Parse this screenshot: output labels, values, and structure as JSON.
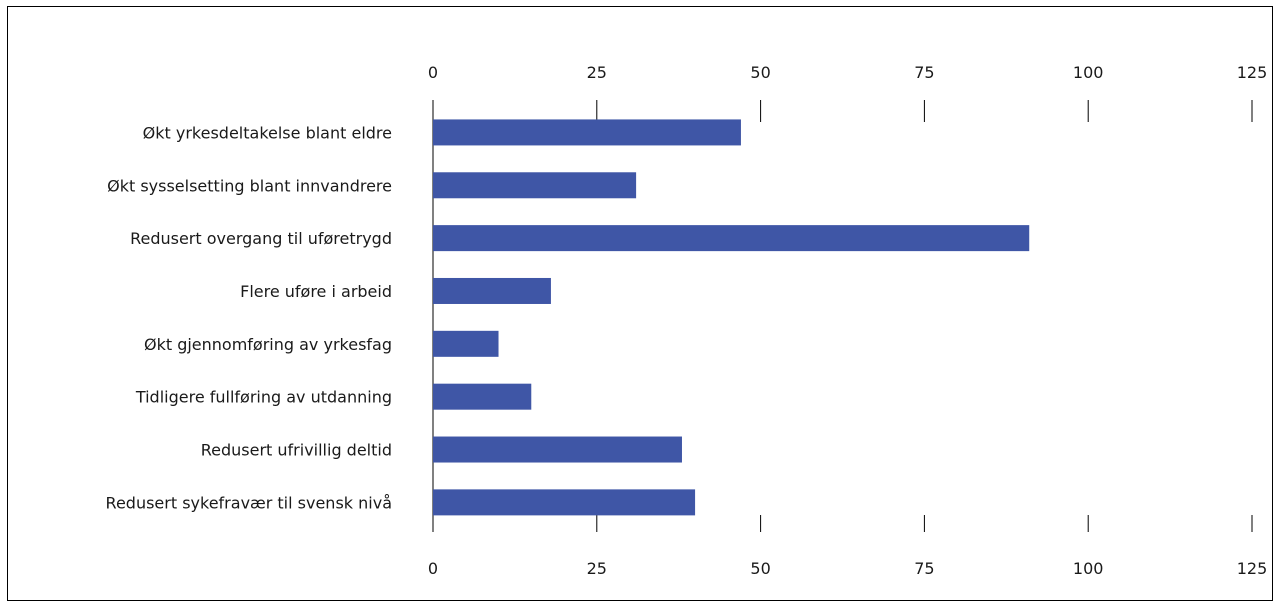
{
  "chart_data": {
    "type": "bar",
    "orientation": "horizontal",
    "categories": [
      "Økt yrkesdeltakelse blant eldre",
      "Økt sysselsetting blant innvandrere",
      "Redusert overgang til uføretrygd",
      "Flere uføre i arbeid",
      "Økt gjennomføring av yrkesfag",
      "Tidligere fullføring av utdanning",
      "Redusert ufrivillig deltid",
      "Redusert sykefravær til svensk nivå"
    ],
    "values": [
      47,
      31,
      91,
      18,
      10,
      15,
      38,
      40
    ],
    "xlim": [
      0,
      125
    ],
    "xticks": [
      "0",
      "25",
      "50",
      "75",
      "100",
      "125"
    ],
    "bar_color": "#3f56a6",
    "grid": false,
    "legend": "none",
    "title": "",
    "xlabel": "",
    "ylabel": ""
  }
}
